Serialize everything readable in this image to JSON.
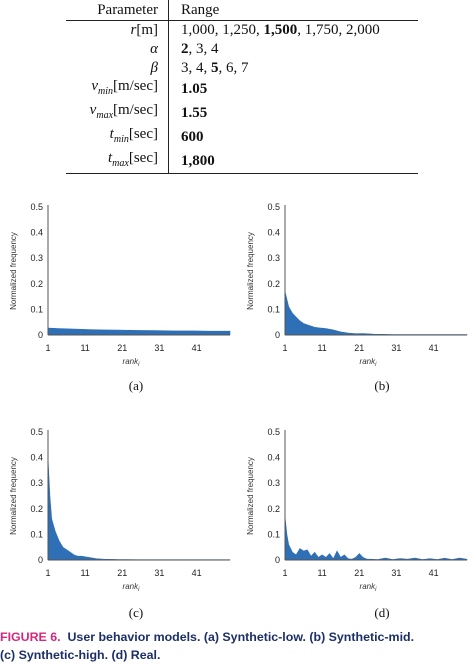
{
  "table": {
    "headers": [
      "Parameter",
      "Range"
    ],
    "rows": [
      {
        "sym": "r",
        "sub": "",
        "unit": "[m]",
        "parts": [
          {
            "t": "1,000, 1,250, ",
            "b": false
          },
          {
            "t": "1,500",
            "b": true
          },
          {
            "t": ", 1,750, 2,000",
            "b": false
          }
        ]
      },
      {
        "sym": "α",
        "sub": "",
        "unit": "",
        "parts": [
          {
            "t": "2",
            "b": true
          },
          {
            "t": ", 3, 4",
            "b": false
          }
        ]
      },
      {
        "sym": "β",
        "sub": "",
        "unit": "",
        "parts": [
          {
            "t": "3, 4, ",
            "b": false
          },
          {
            "t": "5",
            "b": true
          },
          {
            "t": ", 6, 7",
            "b": false
          }
        ]
      },
      {
        "sym": "v",
        "sub": "min",
        "unit": "[m/sec]",
        "parts": [
          {
            "t": "1.05",
            "b": true
          }
        ]
      },
      {
        "sym": "v",
        "sub": "max",
        "unit": "[m/sec]",
        "parts": [
          {
            "t": "1.55",
            "b": true
          }
        ]
      },
      {
        "sym": "t",
        "sub": "min",
        "unit": "[sec]",
        "parts": [
          {
            "t": "600",
            "b": true
          }
        ]
      },
      {
        "sym": "t",
        "sub": "max",
        "unit": "[sec]",
        "parts": [
          {
            "t": "1,800",
            "b": true
          }
        ]
      }
    ]
  },
  "chart_data": [
    {
      "type": "area",
      "panel": "(a)",
      "xlabel": "rank_i",
      "ylabel": "Normalized frequency",
      "xlim": [
        1,
        50
      ],
      "ylim": [
        0,
        0.5
      ],
      "xticks": [
        1,
        11,
        21,
        31,
        41
      ],
      "yticks": [
        0,
        0.1,
        0.2,
        0.3,
        0.4,
        0.5
      ],
      "x": [
        1,
        4,
        8,
        12,
        16,
        20,
        25,
        30,
        35,
        40,
        45,
        50
      ],
      "y": [
        0.027,
        0.025,
        0.023,
        0.021,
        0.02,
        0.019,
        0.018,
        0.017,
        0.016,
        0.016,
        0.015,
        0.015
      ],
      "color": "#2f6fb5"
    },
    {
      "type": "area",
      "panel": "(b)",
      "xlabel": "rank_i",
      "ylabel": "Normalized frequency",
      "xlim": [
        1,
        50
      ],
      "ylim": [
        0,
        0.5
      ],
      "xticks": [
        1,
        11,
        21,
        31,
        41
      ],
      "yticks": [
        0,
        0.1,
        0.2,
        0.3,
        0.4,
        0.5
      ],
      "x": [
        1,
        2,
        3,
        4,
        5,
        6,
        7,
        8,
        9,
        10,
        12,
        14,
        16,
        18,
        20,
        22,
        25,
        30,
        40,
        50
      ],
      "y": [
        0.17,
        0.11,
        0.085,
        0.07,
        0.055,
        0.045,
        0.04,
        0.035,
        0.03,
        0.028,
        0.025,
        0.02,
        0.012,
        0.008,
        0.005,
        0.006,
        0.003,
        0.002,
        0.002,
        0.002
      ],
      "color": "#2f6fb5"
    },
    {
      "type": "area",
      "panel": "(c)",
      "xlabel": "rank_i",
      "ylabel": "Normalized frequency",
      "xlim": [
        1,
        50
      ],
      "ylim": [
        0,
        0.5
      ],
      "xticks": [
        1,
        11,
        21,
        31,
        41
      ],
      "yticks": [
        0,
        0.1,
        0.2,
        0.3,
        0.4,
        0.5
      ],
      "x": [
        1,
        1.5,
        2,
        3,
        4,
        5,
        6,
        7,
        8,
        9,
        10,
        12,
        14,
        16,
        20,
        25,
        30,
        50
      ],
      "y": [
        0.4,
        0.25,
        0.16,
        0.11,
        0.075,
        0.05,
        0.04,
        0.03,
        0.02,
        0.015,
        0.015,
        0.01,
        0.005,
        0.003,
        0.002,
        0.001,
        0.001,
        0.001
      ],
      "color": "#2f6fb5"
    },
    {
      "type": "area",
      "panel": "(d)",
      "xlabel": "rank_i",
      "ylabel": "Normalized frequency",
      "xlim": [
        1,
        50
      ],
      "ylim": [
        0,
        0.5
      ],
      "xticks": [
        1,
        11,
        21,
        31,
        41
      ],
      "yticks": [
        0,
        0.1,
        0.2,
        0.3,
        0.4,
        0.5
      ],
      "x": [
        1,
        1.5,
        2,
        3,
        4,
        5,
        6,
        7,
        8,
        9,
        10,
        11,
        12,
        13,
        14,
        15,
        16,
        17,
        18,
        19,
        20,
        21,
        22,
        23,
        24,
        26,
        28,
        30,
        32,
        34,
        36,
        38,
        40,
        42,
        44,
        46,
        48,
        50
      ],
      "y": [
        0.17,
        0.1,
        0.06,
        0.03,
        0.02,
        0.045,
        0.035,
        0.04,
        0.015,
        0.03,
        0.01,
        0.02,
        0.01,
        0.025,
        0.005,
        0.035,
        0.01,
        0.02,
        0.005,
        0.003,
        0.01,
        0.025,
        0.01,
        0.004,
        0.003,
        0.002,
        0.008,
        0.002,
        0.006,
        0.003,
        0.008,
        0.002,
        0.005,
        0.002,
        0.007,
        0.002,
        0.008,
        0.003
      ],
      "color": "#2f6fb5"
    }
  ],
  "ytick_labels": [
    "0",
    "0.1",
    "0.2",
    "0.3",
    "0.4",
    "0.5"
  ],
  "xtick_labels": [
    "1",
    "11",
    "21",
    "31",
    "41"
  ],
  "axis_title": "Normalized frequency",
  "xaxis_title_main": "rank",
  "xaxis_title_sub": "i",
  "panels": [
    "(a)",
    "(b)",
    "(c)",
    "(d)"
  ],
  "caption": {
    "label": "FIGURE 6.",
    "line1": "User behavior models. (a) Synthetic-low. (b) Synthetic-mid.",
    "line2": "(c) Synthetic-high. (d) Real."
  }
}
